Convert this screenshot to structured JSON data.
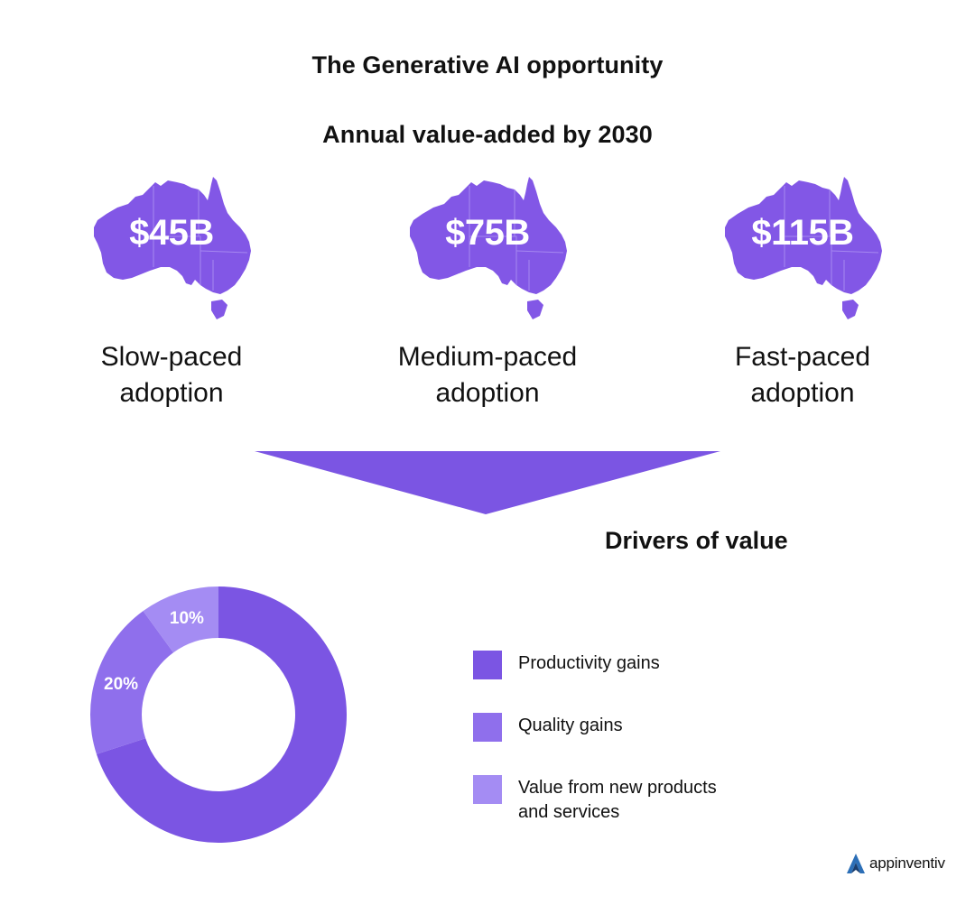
{
  "header": {
    "title": "The Generative AI opportunity",
    "subtitle": "Annual value-added by 2030"
  },
  "scenarios": [
    {
      "amount": "$45B",
      "label_line1": "Slow-paced",
      "label_line2": "adoption"
    },
    {
      "amount": "$75B",
      "label_line1": "Medium-paced",
      "label_line2": "adoption"
    },
    {
      "amount": "$115B",
      "label_line1": "Fast-paced",
      "label_line2": "adoption"
    }
  ],
  "drivers": {
    "title": "Drivers of value"
  },
  "colors": {
    "map_purple": "#8257E6",
    "arrow_purple": "#7B55E3",
    "productivity": "#7B55E3",
    "quality": "#8F6FEC",
    "new_products": "#A48CF3"
  },
  "chart_data": {
    "type": "pie",
    "donut": true,
    "title": "Drivers of value",
    "series": [
      {
        "name": "Productivity gains",
        "value": 70,
        "label": "70%",
        "color": "#7B55E3"
      },
      {
        "name": "Quality gains",
        "value": 20,
        "label": "20%",
        "color": "#8F6FEC"
      },
      {
        "name": "Value from new products and services",
        "value": 10,
        "label": "10%",
        "color": "#A48CF3"
      }
    ],
    "legend_position": "right"
  },
  "legend": [
    {
      "label": "Productivity gains"
    },
    {
      "label": "Quality gains"
    },
    {
      "label_line1": "Value from new products",
      "label_line2": "and services"
    }
  ],
  "brand": {
    "name": "appinventiv",
    "icon": "appinventiv-logo-icon"
  }
}
